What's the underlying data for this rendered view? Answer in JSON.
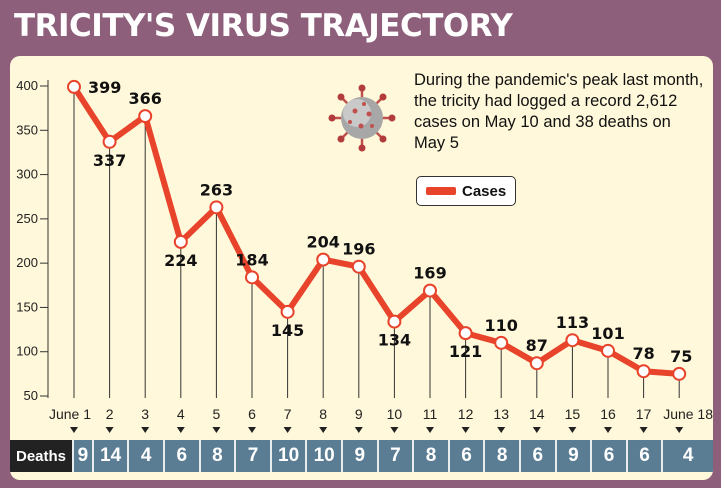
{
  "title": "TRICITY'S VIRUS TRAJECTORY",
  "annotation": "During the pandemic's peak last month, the tricity had logged a record 2,612 cases on May 10 and 38 deaths on May 5",
  "legend": {
    "label": "Cases"
  },
  "deaths_label": "Deaths",
  "icon": "virus-icon",
  "colors": {
    "line": "#e8432b",
    "frame": "#8e5f7a",
    "panel": "#fff8da",
    "deaths_bar": "#5a7d93"
  },
  "chart_data": {
    "type": "line",
    "title": "TRICITY'S VIRUS TRAJECTORY",
    "categories": [
      "June 1",
      "2",
      "3",
      "4",
      "5",
      "6",
      "7",
      "8",
      "9",
      "10",
      "11",
      "12",
      "13",
      "14",
      "15",
      "16",
      "17",
      "June 18"
    ],
    "series": [
      {
        "name": "Cases",
        "values": [
          399,
          337,
          366,
          224,
          263,
          184,
          145,
          204,
          196,
          134,
          169,
          121,
          110,
          87,
          113,
          101,
          78,
          75
        ]
      }
    ],
    "deaths": [
      9,
      14,
      4,
      6,
      8,
      7,
      10,
      10,
      9,
      7,
      8,
      6,
      8,
      6,
      9,
      6,
      6,
      4
    ],
    "yticks": [
      50,
      100,
      150,
      200,
      250,
      300,
      350,
      400
    ],
    "ylim": [
      50,
      400
    ],
    "legend_position": "top-right",
    "grid": false
  }
}
